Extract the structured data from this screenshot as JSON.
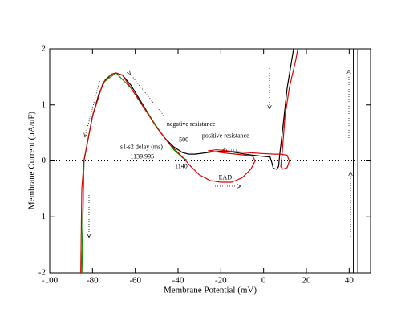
{
  "chart_data": {
    "type": "line",
    "xlabel": "Membrane Potential (mV)",
    "ylabel": "Membrane Current (uA/uF)",
    "xlim": [
      -100,
      50
    ],
    "xticks": [
      -100,
      -80,
      -60,
      -40,
      -20,
      0,
      20,
      40
    ],
    "ylim": [
      -2,
      2
    ],
    "yticks": [
      -2,
      -1,
      0,
      1,
      2
    ],
    "reference_lines": [
      0
    ],
    "annotations": [
      "negative resistance",
      "positive resistance",
      "s1-s2 delay (ms)",
      "EAD"
    ],
    "series": [
      {
        "name": "500",
        "color": "#000000",
        "x": [
          -85,
          -84,
          -82,
          -80,
          -77,
          -74,
          -71,
          -69,
          -66,
          -62,
          -58,
          -54,
          -50,
          -46,
          -42,
          -38,
          -35,
          -32,
          -28,
          -24,
          -20,
          -15,
          -10,
          -5,
          0,
          3,
          4,
          4.5,
          6,
          7,
          7.5,
          9,
          11,
          14,
          null,
          42,
          42
        ],
        "values": [
          -2,
          0,
          0.4,
          0.8,
          1.2,
          1.45,
          1.55,
          1.57,
          1.53,
          1.35,
          1.1,
          0.85,
          0.6,
          0.4,
          0.25,
          0.15,
          0.12,
          0.12,
          0.14,
          0.16,
          0.17,
          0.16,
          0.13,
          0.1,
          0.08,
          0.07,
          -0.05,
          -0.13,
          -0.15,
          -0.1,
          0.1,
          0.6,
          1.3,
          2,
          null,
          -2,
          2
        ]
      },
      {
        "name": "1139.995",
        "color": "#00a000",
        "x": [
          -85,
          -84,
          -80,
          -75,
          -69,
          -62,
          -55,
          -48,
          -42,
          -38,
          -36
        ],
        "values": [
          -2,
          0,
          0.8,
          1.4,
          1.57,
          1.3,
          0.9,
          0.5,
          0.2,
          0.06,
          0.02
        ]
      },
      {
        "name": "1140",
        "color": "#e00000",
        "x": [
          -85.5,
          -85,
          -84,
          -80,
          -75,
          -71,
          -69,
          -66,
          -62,
          -56,
          -50,
          -44,
          -40,
          -37,
          -34,
          -30,
          -25,
          -20,
          -15,
          -10,
          -6,
          -4,
          -5,
          -8,
          -13,
          -18,
          -22,
          -26,
          -22,
          -15,
          -8,
          0,
          5,
          8,
          11,
          12,
          11,
          9,
          8,
          8.5,
          9,
          10,
          12,
          15,
          16,
          null,
          44,
          44
        ],
        "values": [
          -2,
          -0.5,
          0,
          0.8,
          1.4,
          1.55,
          1.57,
          1.53,
          1.3,
          0.95,
          0.6,
          0.3,
          0.15,
          0.03,
          -0.1,
          -0.25,
          -0.35,
          -0.38,
          -0.38,
          -0.3,
          -0.15,
          0,
          0.08,
          0.1,
          0.12,
          0.14,
          0.16,
          0.18,
          0.2,
          0.17,
          0.15,
          0.13,
          0.12,
          0.12,
          0.1,
          0,
          -0.12,
          -0.15,
          -0.1,
          0.05,
          0.3,
          0.8,
          1.3,
          1.8,
          2,
          null,
          -2,
          2
        ]
      }
    ]
  }
}
